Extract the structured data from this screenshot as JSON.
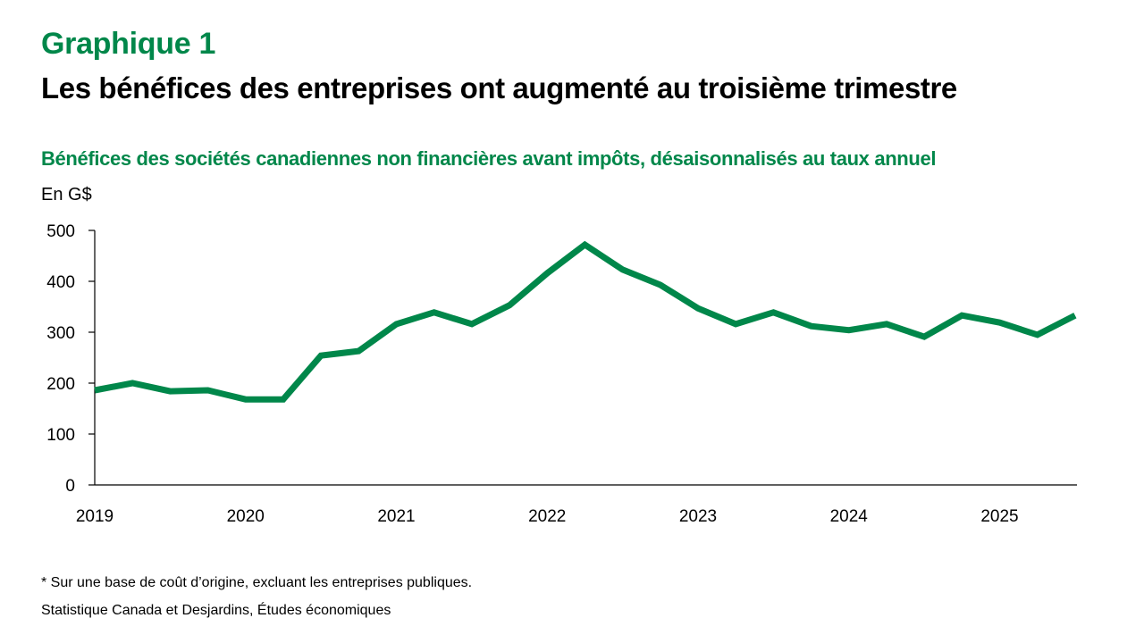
{
  "header": {
    "label": "Graphique 1",
    "title": "Les bénéfices des entreprises ont augmenté au troisième trimestre"
  },
  "colors": {
    "accent": "#00874A",
    "line": "#00874A",
    "axis": "#000000"
  },
  "chart_data": {
    "type": "line",
    "title": "Bénéfices des sociétés canadiennes non financières avant impôts, désaisonnalisés au taux annuel",
    "ylabel": "En G$",
    "xlabel": "",
    "ylim": [
      0,
      500
    ],
    "yticks": [
      "0",
      "100",
      "200",
      "300",
      "400",
      "500"
    ],
    "ytick_values": [
      0,
      100,
      200,
      300,
      400,
      500
    ],
    "xtick_labels": [
      "2019",
      "2020",
      "2021",
      "2022",
      "2023",
      "2024",
      "2025"
    ],
    "xtick_index": [
      0,
      4,
      8,
      12,
      16,
      20,
      24
    ],
    "x": [
      "2019T1",
      "2019T2",
      "2019T3",
      "2019T4",
      "2020T1",
      "2020T2",
      "2020T3",
      "2020T4",
      "2021T1",
      "2021T2",
      "2021T3",
      "2021T4",
      "2022T1",
      "2022T2",
      "2022T3",
      "2022T4",
      "2023T1",
      "2023T2",
      "2023T3",
      "2023T4",
      "2024T1",
      "2024T2",
      "2024T3",
      "2024T4",
      "2025T1",
      "2025T2",
      "2025T3"
    ],
    "grid": false,
    "legend": "none",
    "series": [
      {
        "name": "Bénéfices avant impôts",
        "values": [
          186,
          200,
          184,
          186,
          168,
          168,
          254,
          263,
          316,
          339,
          316,
          353,
          416,
          472,
          423,
          393,
          347,
          316,
          339,
          312,
          304,
          316,
          291,
          333,
          319,
          295,
          333
        ]
      }
    ]
  },
  "footer": {
    "note": "* Sur une base de coût d’origine, excluant les entreprises publiques.",
    "source": "Statistique Canada et Desjardins, Études économiques"
  }
}
